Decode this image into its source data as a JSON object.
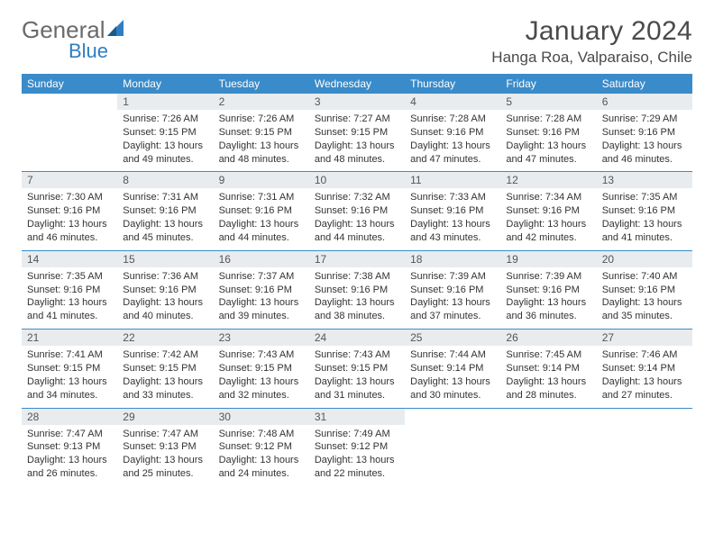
{
  "logo": {
    "text1": "General",
    "text2": "Blue"
  },
  "title": "January 2024",
  "location": "Hanga Roa, Valparaiso, Chile",
  "colors": {
    "header_bg": "#3a8bc9",
    "header_text": "#ffffff",
    "daynum_bg": "#e9ecef",
    "border": "#3a8bc9",
    "body_text": "#333333",
    "logo_gray": "#6a6a6a",
    "logo_blue": "#2f7ec2",
    "page_bg": "#ffffff"
  },
  "typography": {
    "title_fontsize": 30,
    "location_fontsize": 17,
    "dayheader_fontsize": 12,
    "daynum_fontsize": 12,
    "data_fontsize": 11
  },
  "day_headers": [
    "Sunday",
    "Monday",
    "Tuesday",
    "Wednesday",
    "Thursday",
    "Friday",
    "Saturday"
  ],
  "weeks": [
    [
      {
        "num": "",
        "sunrise": "",
        "sunset": "",
        "daylight": ""
      },
      {
        "num": "1",
        "sunrise": "Sunrise: 7:26 AM",
        "sunset": "Sunset: 9:15 PM",
        "daylight": "Daylight: 13 hours and 49 minutes."
      },
      {
        "num": "2",
        "sunrise": "Sunrise: 7:26 AM",
        "sunset": "Sunset: 9:15 PM",
        "daylight": "Daylight: 13 hours and 48 minutes."
      },
      {
        "num": "3",
        "sunrise": "Sunrise: 7:27 AM",
        "sunset": "Sunset: 9:15 PM",
        "daylight": "Daylight: 13 hours and 48 minutes."
      },
      {
        "num": "4",
        "sunrise": "Sunrise: 7:28 AM",
        "sunset": "Sunset: 9:16 PM",
        "daylight": "Daylight: 13 hours and 47 minutes."
      },
      {
        "num": "5",
        "sunrise": "Sunrise: 7:28 AM",
        "sunset": "Sunset: 9:16 PM",
        "daylight": "Daylight: 13 hours and 47 minutes."
      },
      {
        "num": "6",
        "sunrise": "Sunrise: 7:29 AM",
        "sunset": "Sunset: 9:16 PM",
        "daylight": "Daylight: 13 hours and 46 minutes."
      }
    ],
    [
      {
        "num": "7",
        "sunrise": "Sunrise: 7:30 AM",
        "sunset": "Sunset: 9:16 PM",
        "daylight": "Daylight: 13 hours and 46 minutes."
      },
      {
        "num": "8",
        "sunrise": "Sunrise: 7:31 AM",
        "sunset": "Sunset: 9:16 PM",
        "daylight": "Daylight: 13 hours and 45 minutes."
      },
      {
        "num": "9",
        "sunrise": "Sunrise: 7:31 AM",
        "sunset": "Sunset: 9:16 PM",
        "daylight": "Daylight: 13 hours and 44 minutes."
      },
      {
        "num": "10",
        "sunrise": "Sunrise: 7:32 AM",
        "sunset": "Sunset: 9:16 PM",
        "daylight": "Daylight: 13 hours and 44 minutes."
      },
      {
        "num": "11",
        "sunrise": "Sunrise: 7:33 AM",
        "sunset": "Sunset: 9:16 PM",
        "daylight": "Daylight: 13 hours and 43 minutes."
      },
      {
        "num": "12",
        "sunrise": "Sunrise: 7:34 AM",
        "sunset": "Sunset: 9:16 PM",
        "daylight": "Daylight: 13 hours and 42 minutes."
      },
      {
        "num": "13",
        "sunrise": "Sunrise: 7:35 AM",
        "sunset": "Sunset: 9:16 PM",
        "daylight": "Daylight: 13 hours and 41 minutes."
      }
    ],
    [
      {
        "num": "14",
        "sunrise": "Sunrise: 7:35 AM",
        "sunset": "Sunset: 9:16 PM",
        "daylight": "Daylight: 13 hours and 41 minutes."
      },
      {
        "num": "15",
        "sunrise": "Sunrise: 7:36 AM",
        "sunset": "Sunset: 9:16 PM",
        "daylight": "Daylight: 13 hours and 40 minutes."
      },
      {
        "num": "16",
        "sunrise": "Sunrise: 7:37 AM",
        "sunset": "Sunset: 9:16 PM",
        "daylight": "Daylight: 13 hours and 39 minutes."
      },
      {
        "num": "17",
        "sunrise": "Sunrise: 7:38 AM",
        "sunset": "Sunset: 9:16 PM",
        "daylight": "Daylight: 13 hours and 38 minutes."
      },
      {
        "num": "18",
        "sunrise": "Sunrise: 7:39 AM",
        "sunset": "Sunset: 9:16 PM",
        "daylight": "Daylight: 13 hours and 37 minutes."
      },
      {
        "num": "19",
        "sunrise": "Sunrise: 7:39 AM",
        "sunset": "Sunset: 9:16 PM",
        "daylight": "Daylight: 13 hours and 36 minutes."
      },
      {
        "num": "20",
        "sunrise": "Sunrise: 7:40 AM",
        "sunset": "Sunset: 9:16 PM",
        "daylight": "Daylight: 13 hours and 35 minutes."
      }
    ],
    [
      {
        "num": "21",
        "sunrise": "Sunrise: 7:41 AM",
        "sunset": "Sunset: 9:15 PM",
        "daylight": "Daylight: 13 hours and 34 minutes."
      },
      {
        "num": "22",
        "sunrise": "Sunrise: 7:42 AM",
        "sunset": "Sunset: 9:15 PM",
        "daylight": "Daylight: 13 hours and 33 minutes."
      },
      {
        "num": "23",
        "sunrise": "Sunrise: 7:43 AM",
        "sunset": "Sunset: 9:15 PM",
        "daylight": "Daylight: 13 hours and 32 minutes."
      },
      {
        "num": "24",
        "sunrise": "Sunrise: 7:43 AM",
        "sunset": "Sunset: 9:15 PM",
        "daylight": "Daylight: 13 hours and 31 minutes."
      },
      {
        "num": "25",
        "sunrise": "Sunrise: 7:44 AM",
        "sunset": "Sunset: 9:14 PM",
        "daylight": "Daylight: 13 hours and 30 minutes."
      },
      {
        "num": "26",
        "sunrise": "Sunrise: 7:45 AM",
        "sunset": "Sunset: 9:14 PM",
        "daylight": "Daylight: 13 hours and 28 minutes."
      },
      {
        "num": "27",
        "sunrise": "Sunrise: 7:46 AM",
        "sunset": "Sunset: 9:14 PM",
        "daylight": "Daylight: 13 hours and 27 minutes."
      }
    ],
    [
      {
        "num": "28",
        "sunrise": "Sunrise: 7:47 AM",
        "sunset": "Sunset: 9:13 PM",
        "daylight": "Daylight: 13 hours and 26 minutes."
      },
      {
        "num": "29",
        "sunrise": "Sunrise: 7:47 AM",
        "sunset": "Sunset: 9:13 PM",
        "daylight": "Daylight: 13 hours and 25 minutes."
      },
      {
        "num": "30",
        "sunrise": "Sunrise: 7:48 AM",
        "sunset": "Sunset: 9:12 PM",
        "daylight": "Daylight: 13 hours and 24 minutes."
      },
      {
        "num": "31",
        "sunrise": "Sunrise: 7:49 AM",
        "sunset": "Sunset: 9:12 PM",
        "daylight": "Daylight: 13 hours and 22 minutes."
      },
      {
        "num": "",
        "sunrise": "",
        "sunset": "",
        "daylight": ""
      },
      {
        "num": "",
        "sunrise": "",
        "sunset": "",
        "daylight": ""
      },
      {
        "num": "",
        "sunrise": "",
        "sunset": "",
        "daylight": ""
      }
    ]
  ]
}
